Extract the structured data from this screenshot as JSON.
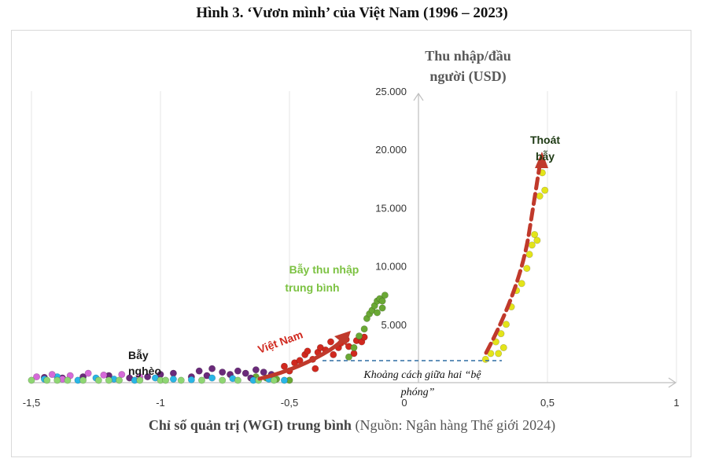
{
  "figure": {
    "title": "Hình 3. ‘Vươn mình’ của Việt Nam (1996 – 2023)",
    "x_caption_bold": "Chỉ số quản trị (WGI) trung bình",
    "x_caption_source": " (Nguồn: Ngân hàng Thế giới 2024)",
    "y_axis_label_line1": "Thu nhập/đầu",
    "y_axis_label_line2": "người (USD)",
    "annotations": {
      "poverty_trap_line1": "Bẫy",
      "poverty_trap_line2": "nghèo",
      "middle_trap_line1": "Bẫy thu nhập",
      "middle_trap_line2": "trung bình",
      "vietnam": "Việt Nam",
      "escape_line1": "Thoát",
      "escape_line2": "bẫy",
      "gap_line1": "Khoảng cách giữa hai “bệ",
      "gap_line2": "phóng”"
    },
    "colors": {
      "red": "#d0281e",
      "green": "#6aa835",
      "yellow": "#e3e41a",
      "purple": "#6a2a7a",
      "cyan": "#29b6e6",
      "pink": "#d56ad8",
      "lightgreen": "#8fd673",
      "arrow": "#c0392b",
      "gap_line": "#2e6da4"
    }
  },
  "chart_data": {
    "type": "scatter",
    "xlim": [
      -1.5,
      1
    ],
    "ylim": [
      0,
      25000
    ],
    "x_ticks": [
      "-1,5",
      "-1",
      "-0,5",
      "0",
      "0,5",
      "1"
    ],
    "y_ticks": [
      "5.000",
      "10.000",
      "15.000",
      "20.000",
      "25.000"
    ],
    "grid": "vertical",
    "series": [
      {
        "color": "red",
        "points": [
          [
            -0.48,
            1700
          ],
          [
            -0.46,
            1900
          ],
          [
            -0.44,
            2400
          ],
          [
            -0.43,
            2700
          ],
          [
            -0.41,
            2000
          ],
          [
            -0.39,
            2600
          ],
          [
            -0.38,
            3000
          ],
          [
            -0.36,
            2800
          ],
          [
            -0.34,
            3500
          ],
          [
            -0.33,
            2400
          ],
          [
            -0.31,
            3000
          ],
          [
            -0.3,
            3400
          ],
          [
            -0.28,
            3700
          ],
          [
            -0.27,
            3100
          ],
          [
            -0.25,
            2500
          ],
          [
            -0.24,
            3600
          ],
          [
            -0.22,
            3500
          ],
          [
            -0.21,
            3900
          ],
          [
            -0.4,
            1200
          ],
          [
            -0.52,
            1400
          ],
          [
            -0.5,
            1000
          ]
        ]
      },
      {
        "color": "green",
        "points": [
          [
            -0.27,
            2200
          ],
          [
            -0.25,
            3000
          ],
          [
            -0.23,
            4000
          ],
          [
            -0.21,
            4600
          ],
          [
            -0.2,
            5500
          ],
          [
            -0.19,
            5900
          ],
          [
            -0.18,
            6200
          ],
          [
            -0.17,
            6600
          ],
          [
            -0.16,
            7000
          ],
          [
            -0.15,
            7200
          ],
          [
            -0.14,
            7000
          ],
          [
            -0.13,
            7500
          ],
          [
            -0.14,
            6400
          ],
          [
            -0.16,
            6000
          ],
          [
            -0.59,
            400
          ],
          [
            -0.55,
            300
          ],
          [
            -0.5,
            200
          ],
          [
            -0.63,
            500
          ]
        ]
      },
      {
        "color": "yellow",
        "points": [
          [
            0.26,
            2000
          ],
          [
            0.28,
            2500
          ],
          [
            0.3,
            3500
          ],
          [
            0.32,
            4200
          ],
          [
            0.33,
            3000
          ],
          [
            0.34,
            5000
          ],
          [
            0.36,
            6500
          ],
          [
            0.38,
            7900
          ],
          [
            0.4,
            8500
          ],
          [
            0.42,
            9800
          ],
          [
            0.43,
            11000
          ],
          [
            0.44,
            11800
          ],
          [
            0.45,
            12700
          ],
          [
            0.46,
            12200
          ],
          [
            0.47,
            16000
          ],
          [
            0.48,
            18000
          ],
          [
            0.49,
            16500
          ],
          [
            0.31,
            2500
          ]
        ]
      },
      {
        "color": "purple",
        "points": [
          [
            -0.85,
            1000
          ],
          [
            -0.82,
            600
          ],
          [
            -0.8,
            1200
          ],
          [
            -0.76,
            900
          ],
          [
            -0.73,
            700
          ],
          [
            -0.7,
            1000
          ],
          [
            -0.67,
            800
          ],
          [
            -0.63,
            1100
          ],
          [
            -0.6,
            900
          ],
          [
            -0.57,
            700
          ],
          [
            -0.95,
            800
          ],
          [
            -1.0,
            700
          ],
          [
            -1.05,
            500
          ],
          [
            -1.12,
            400
          ],
          [
            -1.2,
            600
          ],
          [
            -1.3,
            500
          ],
          [
            -1.38,
            400
          ],
          [
            -1.45,
            450
          ],
          [
            -0.88,
            500
          ],
          [
            -0.65,
            400
          ]
        ]
      },
      {
        "color": "cyan",
        "points": [
          [
            -1.45,
            300
          ],
          [
            -1.4,
            500
          ],
          [
            -1.32,
            200
          ],
          [
            -1.25,
            400
          ],
          [
            -1.18,
            300
          ],
          [
            -1.1,
            200
          ],
          [
            -1.02,
            400
          ],
          [
            -0.95,
            300
          ],
          [
            -0.88,
            250
          ],
          [
            -0.8,
            400
          ],
          [
            -0.72,
            350
          ],
          [
            -0.64,
            200
          ],
          [
            -0.58,
            300
          ],
          [
            -0.52,
            200
          ]
        ]
      },
      {
        "color": "pink",
        "points": [
          [
            -1.48,
            500
          ],
          [
            -1.42,
            700
          ],
          [
            -1.35,
            600
          ],
          [
            -1.28,
            800
          ],
          [
            -1.22,
            650
          ],
          [
            -1.15,
            700
          ],
          [
            -1.08,
            500
          ],
          [
            -1.38,
            300
          ]
        ]
      },
      {
        "color": "lightgreen",
        "points": [
          [
            -1.5,
            100
          ],
          [
            -1.44,
            150
          ],
          [
            -1.36,
            80
          ],
          [
            -1.3,
            120
          ],
          [
            -1.24,
            60
          ],
          [
            -1.16,
            100
          ],
          [
            -1.08,
            90
          ],
          [
            -1.0,
            130
          ],
          [
            -0.92,
            80
          ],
          [
            -0.84,
            120
          ],
          [
            -0.76,
            100
          ],
          [
            -0.7,
            90
          ],
          [
            -0.62,
            110
          ],
          [
            -0.56,
            80
          ],
          [
            -1.4,
            0
          ],
          [
            -1.2,
            0
          ],
          [
            -0.98,
            0
          ]
        ]
      }
    ]
  }
}
